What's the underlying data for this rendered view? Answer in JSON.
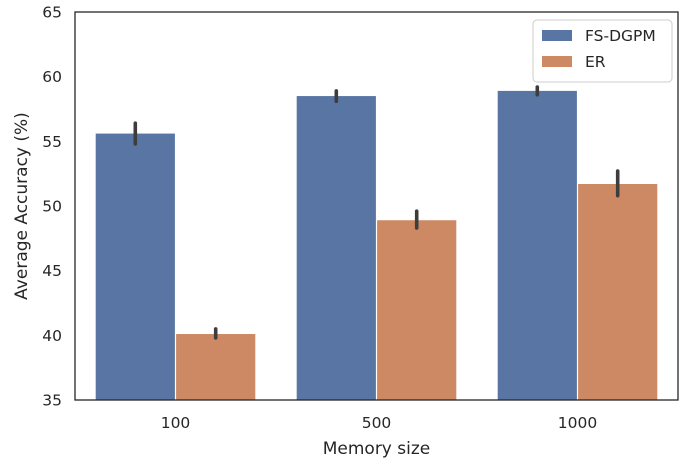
{
  "chart_data": {
    "type": "bar",
    "title": "",
    "xlabel": "Memory size",
    "ylabel": "Average Accuracy (%)",
    "categories": [
      "100",
      "500",
      "1000"
    ],
    "ylim": [
      35,
      65
    ],
    "yticks": [
      35,
      40,
      45,
      50,
      55,
      60,
      65
    ],
    "grid": false,
    "legend_position": "top-right",
    "series": [
      {
        "name": "FS-DGPM",
        "color": "#5975a4",
        "values": [
          55.6,
          58.5,
          58.9
        ],
        "error_low": [
          54.8,
          58.1,
          58.6
        ],
        "error_high": [
          56.4,
          58.9,
          59.2
        ]
      },
      {
        "name": "ER",
        "color": "#cc8963",
        "values": [
          40.1,
          48.9,
          51.7
        ],
        "error_low": [
          39.8,
          48.3,
          50.8
        ],
        "error_high": [
          40.5,
          49.6,
          52.7
        ]
      }
    ]
  }
}
